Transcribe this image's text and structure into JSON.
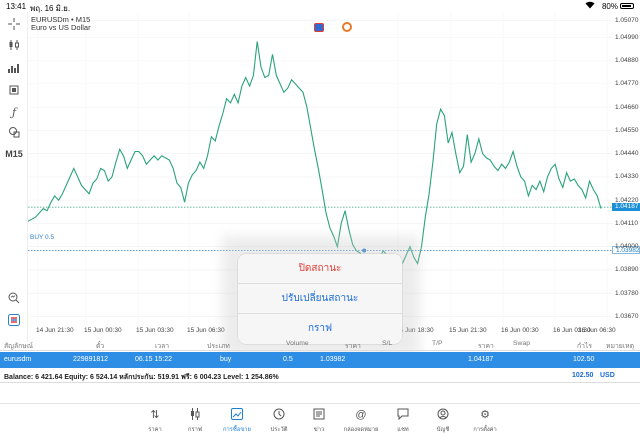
{
  "status_bar": {
    "time": "13:41",
    "date": "พฤ. 16 มิ.ย.",
    "battery": "80%"
  },
  "chart": {
    "symbol": "EURUSDm • M15",
    "description": "Euro vs US Dollar",
    "timeframe": "M15",
    "buy_label": "BUY 0.5",
    "current_price": "1.04187",
    "buy_price": "1.03982",
    "colors": {
      "line": "#2aa37a",
      "bid": "#2aa37a",
      "buy": "#2f7fd0",
      "highlight": "#1c8fd7"
    },
    "price_labels": [
      "1.05070",
      "1.04990",
      "1.04880",
      "1.04770",
      "1.04660",
      "1.04550",
      "1.04440",
      "1.04330",
      "1.04220",
      "1.04110",
      "1.04000",
      "1.03890",
      "1.03780",
      "1.03670"
    ],
    "time_labels": [
      "14 Jun 21:30",
      "15 Jun 00:30",
      "15 Jun 03:30",
      "15 Jun 06:30",
      "15 Jun 18:30",
      "15 Jun 21:30",
      "16 Jun 00:30",
      "16 Jun 03:30",
      "16 Jun 06:30"
    ]
  },
  "chart_data": {
    "type": "line",
    "price_min": 1.0362,
    "price_max": 1.0511,
    "series": [
      {
        "values": [
          1.0412,
          1.0413,
          1.0414,
          1.0416,
          1.0418,
          1.0417,
          1.0421,
          1.0424,
          1.0422,
          1.0425,
          1.0429,
          1.0433,
          1.0437,
          1.0433,
          1.0429,
          1.0427,
          1.0425,
          1.043,
          1.0432,
          1.0437,
          1.0436,
          1.0431,
          1.0433,
          1.044,
          1.0446,
          1.0443,
          1.0437,
          1.0441,
          1.0445,
          1.0445,
          1.0443,
          1.0439,
          1.0441,
          1.0443,
          1.0441,
          1.0443,
          1.0442,
          1.0441,
          1.0437,
          1.043,
          1.0428,
          1.0421,
          1.043,
          1.0434,
          1.0436,
          1.044,
          1.0437,
          1.0443,
          1.0452,
          1.045,
          1.0457,
          1.0463,
          1.047,
          1.0468,
          1.0472,
          1.0468,
          1.0476,
          1.048,
          1.0476,
          1.0481,
          1.0497,
          1.0485,
          1.048,
          1.0481,
          1.0491,
          1.0481,
          1.0477,
          1.0473,
          1.0475,
          1.0479,
          1.0477,
          1.0475,
          1.0473,
          1.0466,
          1.0456,
          1.0446,
          1.0437,
          1.0427,
          1.0416,
          1.0409,
          1.0405,
          1.04,
          1.0411,
          1.0417,
          1.0408,
          1.0401,
          1.0398,
          1.0397,
          1.0393,
          1.039,
          1.0391,
          1.0396,
          1.0395,
          1.0398,
          1.0396,
          1.0392,
          1.039,
          1.0388,
          1.0392,
          1.0396,
          1.04,
          1.0395,
          1.0392,
          1.04,
          1.0414,
          1.0425,
          1.044,
          1.0458,
          1.0465,
          1.0462,
          1.0449,
          1.0454,
          1.0444,
          1.0435,
          1.0438,
          1.0453,
          1.044,
          1.0444,
          1.0451,
          1.0444,
          1.0442,
          1.0441,
          1.0438,
          1.0436,
          1.0439,
          1.0437,
          1.044,
          1.0445,
          1.0438,
          1.0433,
          1.0431,
          1.0424,
          1.0429,
          1.0427,
          1.0431,
          1.0426,
          1.0433,
          1.0437,
          1.0439,
          1.0432,
          1.0428,
          1.0435,
          1.0431,
          1.0432,
          1.0429,
          1.0427,
          1.0423,
          1.0431,
          1.0427,
          1.0424,
          1.0418
        ]
      }
    ]
  },
  "context_menu": {
    "items": [
      {
        "label": "ปิดสถานะ",
        "danger": true
      },
      {
        "label": "ปรับเปลี่ยนสถานะ",
        "danger": false
      },
      {
        "label": "กราฟ",
        "danger": false
      }
    ]
  },
  "table": {
    "headers": [
      "สัญลักษณ์",
      "ตั๋ว",
      "เวลา",
      "ประเภท",
      "Volume",
      "ราคา",
      "S/L",
      "T/P",
      "ราคา",
      "Swap",
      "กำไร",
      "หมายเหตุ"
    ],
    "row": {
      "symbol": "eurusdm",
      "ticket": "229891812",
      "time": "06.15 15:22",
      "type": "buy",
      "volume": "0.5",
      "price_open": "1.03982",
      "price_current": "1.04187",
      "profit": "102.50"
    },
    "balance_line": "Balance: 6 421.64 Equity: 6 524.14 หลักประกัน: 519.91 ฟรี: 6 004.23 Level: 1 254.86%",
    "total_profit": "102.50",
    "currency": "USD"
  },
  "tabbar": {
    "items": [
      {
        "label": "ราคา",
        "icon": "arrows-up-down-icon",
        "active": false
      },
      {
        "label": "กราฟ",
        "icon": "candlestick-icon",
        "active": false
      },
      {
        "label": "การซื้อขาย",
        "icon": "trade-chart-icon",
        "active": true
      },
      {
        "label": "ประวัติ",
        "icon": "history-icon",
        "active": false
      },
      {
        "label": "ข่าว",
        "icon": "news-icon",
        "active": false
      },
      {
        "label": "กล่องจดหมาย",
        "icon": "at-icon",
        "active": false
      },
      {
        "label": "แชท",
        "icon": "chat-icon",
        "active": false
      },
      {
        "label": "บัญชี",
        "icon": "account-icon",
        "active": false
      },
      {
        "label": "การตั้งค่า",
        "icon": "gear-icon",
        "active": false
      }
    ]
  }
}
